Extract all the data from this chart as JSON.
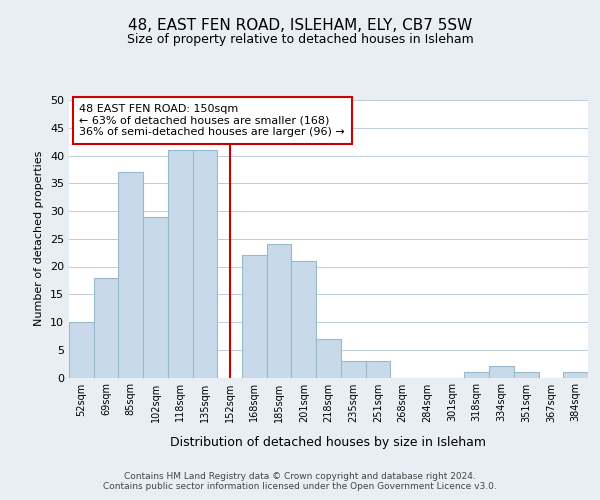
{
  "title": "48, EAST FEN ROAD, ISLEHAM, ELY, CB7 5SW",
  "subtitle": "Size of property relative to detached houses in Isleham",
  "xlabel": "Distribution of detached houses by size in Isleham",
  "ylabel": "Number of detached properties",
  "bin_labels": [
    "52sqm",
    "69sqm",
    "85sqm",
    "102sqm",
    "118sqm",
    "135sqm",
    "152sqm",
    "168sqm",
    "185sqm",
    "201sqm",
    "218sqm",
    "235sqm",
    "251sqm",
    "268sqm",
    "284sqm",
    "301sqm",
    "318sqm",
    "334sqm",
    "351sqm",
    "367sqm",
    "384sqm"
  ],
  "bar_values": [
    10,
    18,
    37,
    29,
    41,
    41,
    0,
    22,
    24,
    21,
    7,
    3,
    3,
    0,
    0,
    0,
    1,
    2,
    1,
    0,
    1
  ],
  "bar_color": "#c8daea",
  "bar_edge_color": "#9ab8cc",
  "highlight_line_color": "#cc0000",
  "annotation_line1": "48 EAST FEN ROAD: 150sqm",
  "annotation_line2": "← 63% of detached houses are smaller (168)",
  "annotation_line3": "36% of semi-detached houses are larger (96) →",
  "annotation_box_edge_color": "#cc0000",
  "ylim": [
    0,
    50
  ],
  "yticks": [
    0,
    5,
    10,
    15,
    20,
    25,
    30,
    35,
    40,
    45,
    50
  ],
  "footer_text": "Contains HM Land Registry data © Crown copyright and database right 2024.\nContains public sector information licensed under the Open Government Licence v3.0.",
  "bg_color": "#e8eef4",
  "plot_bg_color": "#ffffff",
  "grid_color": "#c0ccd8"
}
